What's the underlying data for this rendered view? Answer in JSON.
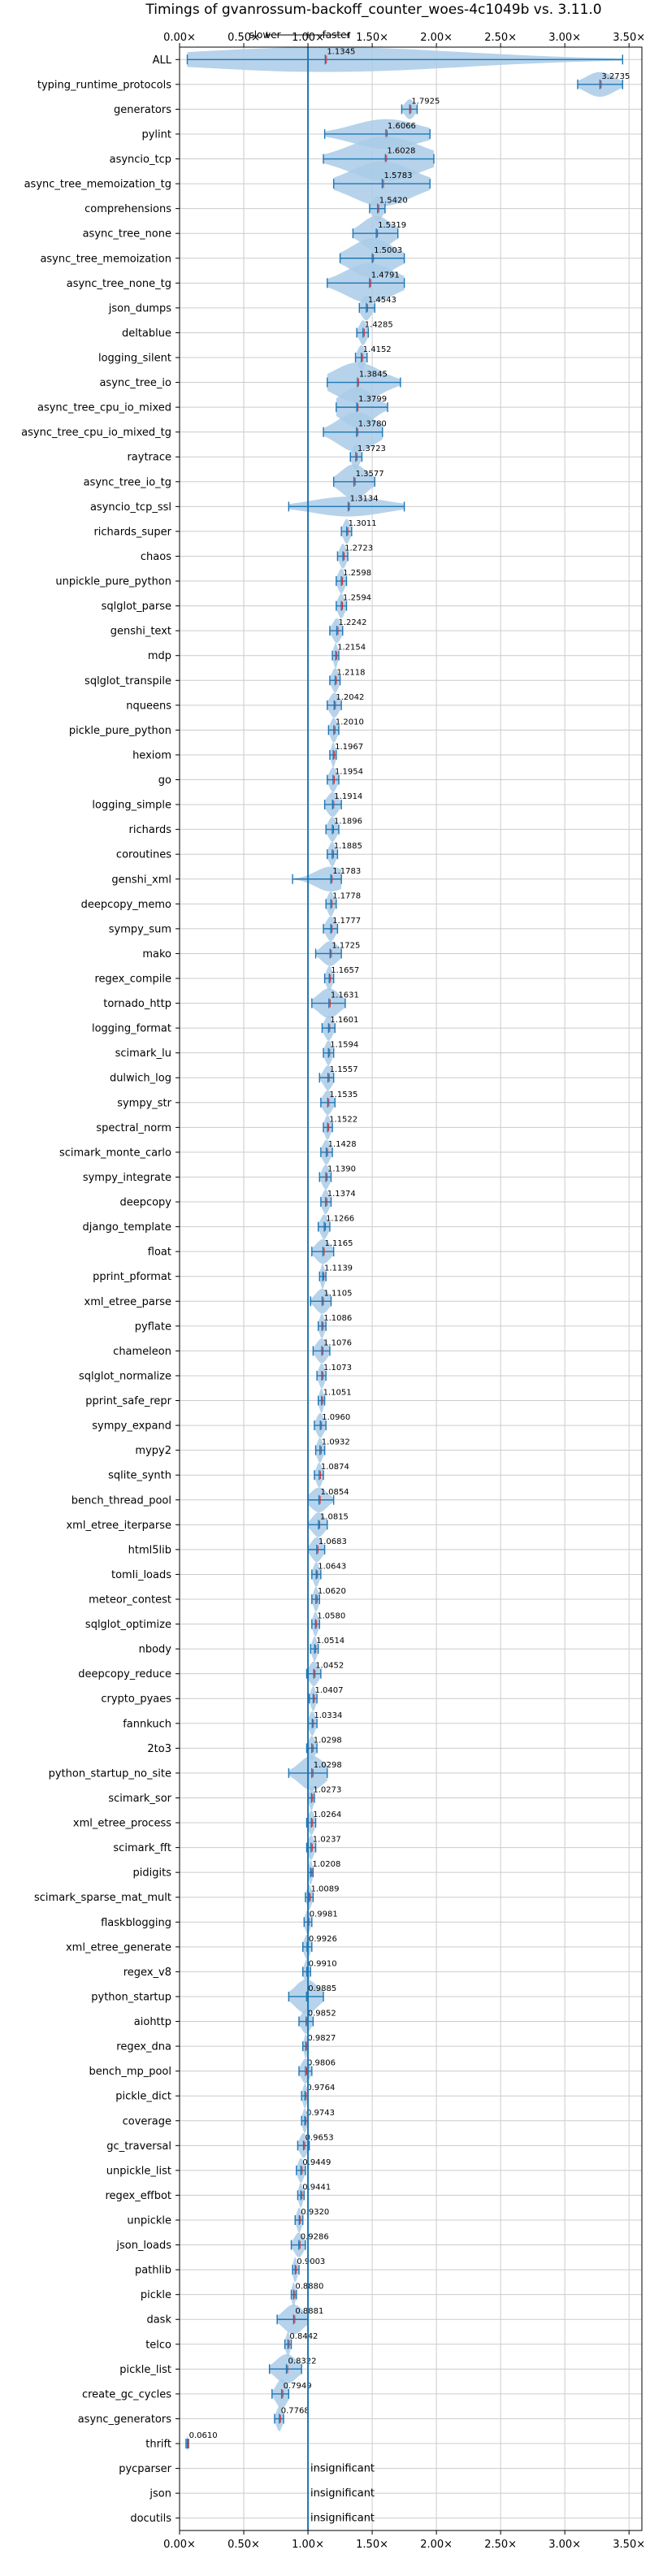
{
  "chart_data": {
    "type": "violin",
    "title": "Timings of gvanrossum-backoff_counter_woes-4c1049b vs. 3.11.0",
    "direction_labels": {
      "slower": "slower",
      "faster": "faster"
    },
    "xlim": [
      0,
      3.6
    ],
    "xticks": [
      0.0,
      0.5,
      1.0,
      1.5,
      2.0,
      2.5,
      3.0,
      3.5
    ],
    "xtick_labels": [
      "0.00×",
      "0.50×",
      "1.00×",
      "1.50×",
      "2.00×",
      "2.50×",
      "3.00×",
      "3.50×"
    ],
    "reference_line": 1.0,
    "grid": true,
    "colors": {
      "violin": "#a9cbe8",
      "line": "#1f77b4",
      "median": "#d62728",
      "grid": "#cccccc"
    },
    "insignificant_label": "insignificant",
    "benchmarks": [
      {
        "name": "ALL",
        "value": 1.1345,
        "label": "1.1345",
        "lo": 0.06,
        "hi": 3.45,
        "w": 0.5
      },
      {
        "name": "typing_runtime_protocols",
        "value": 3.2735,
        "label": "3.2735",
        "lo": 3.1,
        "hi": 3.45,
        "w": 0.5
      },
      {
        "name": "generators",
        "value": 1.7925,
        "label": "1.7925",
        "lo": 1.73,
        "hi": 1.85,
        "w": 0.4
      },
      {
        "name": "pylint",
        "value": 1.6066,
        "label": "1.6066",
        "lo": 1.13,
        "hi": 1.95,
        "w": 0.6
      },
      {
        "name": "asyncio_tcp",
        "value": 1.6028,
        "label": "1.6028",
        "lo": 1.12,
        "hi": 1.98,
        "w": 0.9
      },
      {
        "name": "async_tree_memoization_tg",
        "value": 1.5783,
        "label": "1.5783",
        "lo": 1.2,
        "hi": 1.95,
        "w": 0.9
      },
      {
        "name": "comprehensions",
        "value": 1.542,
        "label": "1.5420",
        "lo": 1.48,
        "hi": 1.6,
        "w": 0.5
      },
      {
        "name": "async_tree_none",
        "value": 1.5319,
        "label": "1.5319",
        "lo": 1.35,
        "hi": 1.7,
        "w": 0.7
      },
      {
        "name": "async_tree_memoization",
        "value": 1.5003,
        "label": "1.5003",
        "lo": 1.25,
        "hi": 1.75,
        "w": 0.8
      },
      {
        "name": "async_tree_none_tg",
        "value": 1.4791,
        "label": "1.4791",
        "lo": 1.15,
        "hi": 1.75,
        "w": 0.8
      },
      {
        "name": "json_dumps",
        "value": 1.4543,
        "label": "1.4543",
        "lo": 1.4,
        "hi": 1.52,
        "w": 0.5
      },
      {
        "name": "deltablue",
        "value": 1.4285,
        "label": "1.4285",
        "lo": 1.38,
        "hi": 1.47,
        "w": 0.5
      },
      {
        "name": "logging_silent",
        "value": 1.4152,
        "label": "1.4152",
        "lo": 1.37,
        "hi": 1.46,
        "w": 0.5
      },
      {
        "name": "async_tree_io",
        "value": 1.3845,
        "label": "1.3845",
        "lo": 1.15,
        "hi": 1.72,
        "w": 0.8
      },
      {
        "name": "async_tree_cpu_io_mixed",
        "value": 1.3799,
        "label": "1.3799",
        "lo": 1.22,
        "hi": 1.62,
        "w": 0.8
      },
      {
        "name": "async_tree_cpu_io_mixed_tg",
        "value": 1.378,
        "label": "1.3780",
        "lo": 1.12,
        "hi": 1.58,
        "w": 0.8
      },
      {
        "name": "raytrace",
        "value": 1.3723,
        "label": "1.3723",
        "lo": 1.33,
        "hi": 1.42,
        "w": 0.5
      },
      {
        "name": "async_tree_io_tg",
        "value": 1.3577,
        "label": "1.3577",
        "lo": 1.2,
        "hi": 1.52,
        "w": 0.7
      },
      {
        "name": "asyncio_tcp_ssl",
        "value": 1.3134,
        "label": "1.3134",
        "lo": 0.85,
        "hi": 1.75,
        "w": 0.4
      },
      {
        "name": "richards_super",
        "value": 1.3011,
        "label": "1.3011",
        "lo": 1.26,
        "hi": 1.34,
        "w": 0.5
      },
      {
        "name": "chaos",
        "value": 1.2723,
        "label": "1.2723",
        "lo": 1.23,
        "hi": 1.31,
        "w": 0.5
      },
      {
        "name": "unpickle_pure_python",
        "value": 1.2598,
        "label": "1.2598",
        "lo": 1.22,
        "hi": 1.3,
        "w": 0.5
      },
      {
        "name": "sqlglot_parse",
        "value": 1.2594,
        "label": "1.2594",
        "lo": 1.22,
        "hi": 1.3,
        "w": 0.5
      },
      {
        "name": "genshi_text",
        "value": 1.2242,
        "label": "1.2242",
        "lo": 1.17,
        "hi": 1.27,
        "w": 0.5
      },
      {
        "name": "mdp",
        "value": 1.2154,
        "label": "1.2154",
        "lo": 1.19,
        "hi": 1.24,
        "w": 0.5
      },
      {
        "name": "sqlglot_transpile",
        "value": 1.2118,
        "label": "1.2118",
        "lo": 1.17,
        "hi": 1.25,
        "w": 0.5
      },
      {
        "name": "nqueens",
        "value": 1.2042,
        "label": "1.2042",
        "lo": 1.15,
        "hi": 1.26,
        "w": 0.5
      },
      {
        "name": "pickle_pure_python",
        "value": 1.201,
        "label": "1.2010",
        "lo": 1.16,
        "hi": 1.24,
        "w": 0.5
      },
      {
        "name": "hexiom",
        "value": 1.1967,
        "label": "1.1967",
        "lo": 1.17,
        "hi": 1.22,
        "w": 0.5
      },
      {
        "name": "go",
        "value": 1.1954,
        "label": "1.1954",
        "lo": 1.15,
        "hi": 1.24,
        "w": 0.5
      },
      {
        "name": "logging_simple",
        "value": 1.1914,
        "label": "1.1914",
        "lo": 1.13,
        "hi": 1.26,
        "w": 0.5
      },
      {
        "name": "richards",
        "value": 1.1896,
        "label": "1.1896",
        "lo": 1.14,
        "hi": 1.24,
        "w": 0.5
      },
      {
        "name": "coroutines",
        "value": 1.1885,
        "label": "1.1885",
        "lo": 1.15,
        "hi": 1.23,
        "w": 0.5
      },
      {
        "name": "genshi_xml",
        "value": 1.1783,
        "label": "1.1783",
        "lo": 0.88,
        "hi": 1.26,
        "w": 0.5
      },
      {
        "name": "deepcopy_memo",
        "value": 1.1778,
        "label": "1.1778",
        "lo": 1.14,
        "hi": 1.22,
        "w": 0.5
      },
      {
        "name": "sympy_sum",
        "value": 1.1777,
        "label": "1.1777",
        "lo": 1.12,
        "hi": 1.23,
        "w": 0.5
      },
      {
        "name": "mako",
        "value": 1.1725,
        "label": "1.1725",
        "lo": 1.06,
        "hi": 1.26,
        "w": 0.5
      },
      {
        "name": "regex_compile",
        "value": 1.1657,
        "label": "1.1657",
        "lo": 1.13,
        "hi": 1.2,
        "w": 0.5
      },
      {
        "name": "tornado_http",
        "value": 1.1631,
        "label": "1.1631",
        "lo": 1.03,
        "hi": 1.29,
        "w": 0.6
      },
      {
        "name": "logging_format",
        "value": 1.1601,
        "label": "1.1601",
        "lo": 1.11,
        "hi": 1.21,
        "w": 0.5
      },
      {
        "name": "scimark_lu",
        "value": 1.1594,
        "label": "1.1594",
        "lo": 1.12,
        "hi": 1.2,
        "w": 0.5
      },
      {
        "name": "dulwich_log",
        "value": 1.1557,
        "label": "1.1557",
        "lo": 1.09,
        "hi": 1.2,
        "w": 0.5
      },
      {
        "name": "sympy_str",
        "value": 1.1535,
        "label": "1.1535",
        "lo": 1.1,
        "hi": 1.21,
        "w": 0.5
      },
      {
        "name": "spectral_norm",
        "value": 1.1522,
        "label": "1.1522",
        "lo": 1.12,
        "hi": 1.19,
        "w": 0.5
      },
      {
        "name": "scimark_monte_carlo",
        "value": 1.1428,
        "label": "1.1428",
        "lo": 1.1,
        "hi": 1.19,
        "w": 0.5
      },
      {
        "name": "sympy_integrate",
        "value": 1.139,
        "label": "1.1390",
        "lo": 1.09,
        "hi": 1.18,
        "w": 0.5
      },
      {
        "name": "deepcopy",
        "value": 1.1374,
        "label": "1.1374",
        "lo": 1.1,
        "hi": 1.18,
        "w": 0.5
      },
      {
        "name": "django_template",
        "value": 1.1266,
        "label": "1.1266",
        "lo": 1.08,
        "hi": 1.17,
        "w": 0.5
      },
      {
        "name": "float",
        "value": 1.1165,
        "label": "1.1165",
        "lo": 1.03,
        "hi": 1.2,
        "w": 0.5
      },
      {
        "name": "pprint_pformat",
        "value": 1.1139,
        "label": "1.1139",
        "lo": 1.09,
        "hi": 1.14,
        "w": 0.5
      },
      {
        "name": "xml_etree_parse",
        "value": 1.1105,
        "label": "1.1105",
        "lo": 1.02,
        "hi": 1.18,
        "w": 0.5
      },
      {
        "name": "pyflate",
        "value": 1.1086,
        "label": "1.1086",
        "lo": 1.08,
        "hi": 1.14,
        "w": 0.5
      },
      {
        "name": "chameleon",
        "value": 1.1076,
        "label": "1.1076",
        "lo": 1.04,
        "hi": 1.17,
        "w": 0.5
      },
      {
        "name": "sqlglot_normalize",
        "value": 1.1073,
        "label": "1.1073",
        "lo": 1.07,
        "hi": 1.14,
        "w": 0.5
      },
      {
        "name": "pprint_safe_repr",
        "value": 1.1051,
        "label": "1.1051",
        "lo": 1.08,
        "hi": 1.13,
        "w": 0.5
      },
      {
        "name": "sympy_expand",
        "value": 1.096,
        "label": "1.0960",
        "lo": 1.05,
        "hi": 1.14,
        "w": 0.5
      },
      {
        "name": "mypy2",
        "value": 1.0932,
        "label": "1.0932",
        "lo": 1.06,
        "hi": 1.13,
        "w": 0.5
      },
      {
        "name": "sqlite_synth",
        "value": 1.0874,
        "label": "1.0874",
        "lo": 1.05,
        "hi": 1.12,
        "w": 0.5
      },
      {
        "name": "bench_thread_pool",
        "value": 1.0854,
        "label": "1.0854",
        "lo": 1.0,
        "hi": 1.2,
        "w": 0.5
      },
      {
        "name": "xml_etree_iterparse",
        "value": 1.0815,
        "label": "1.0815",
        "lo": 1.0,
        "hi": 1.15,
        "w": 0.5
      },
      {
        "name": "html5lib",
        "value": 1.0683,
        "label": "1.0683",
        "lo": 1.0,
        "hi": 1.13,
        "w": 0.5
      },
      {
        "name": "tomli_loads",
        "value": 1.0643,
        "label": "1.0643",
        "lo": 1.03,
        "hi": 1.1,
        "w": 0.5
      },
      {
        "name": "meteor_contest",
        "value": 1.062,
        "label": "1.0620",
        "lo": 1.03,
        "hi": 1.09,
        "w": 0.5
      },
      {
        "name": "sqlglot_optimize",
        "value": 1.058,
        "label": "1.0580",
        "lo": 1.03,
        "hi": 1.09,
        "w": 0.5
      },
      {
        "name": "nbody",
        "value": 1.0514,
        "label": "1.0514",
        "lo": 1.02,
        "hi": 1.08,
        "w": 0.5
      },
      {
        "name": "deepcopy_reduce",
        "value": 1.0452,
        "label": "1.0452",
        "lo": 0.99,
        "hi": 1.1,
        "w": 0.5
      },
      {
        "name": "crypto_pyaes",
        "value": 1.0407,
        "label": "1.0407",
        "lo": 1.01,
        "hi": 1.07,
        "w": 0.5
      },
      {
        "name": "fannkuch",
        "value": 1.0334,
        "label": "1.0334",
        "lo": 1.0,
        "hi": 1.07,
        "w": 0.5
      },
      {
        "name": "2to3",
        "value": 1.0298,
        "label": "1.0298",
        "lo": 0.99,
        "hi": 1.07,
        "w": 0.5
      },
      {
        "name": "python_startup_no_site",
        "value": 1.0298,
        "label": "1.0298",
        "lo": 0.85,
        "hi": 1.15,
        "w": 0.7
      },
      {
        "name": "scimark_sor",
        "value": 1.0273,
        "label": "1.0273",
        "lo": 1.0,
        "hi": 1.05,
        "w": 0.5
      },
      {
        "name": "xml_etree_process",
        "value": 1.0264,
        "label": "1.0264",
        "lo": 0.99,
        "hi": 1.06,
        "w": 0.5
      },
      {
        "name": "scimark_fft",
        "value": 1.0237,
        "label": "1.0237",
        "lo": 0.99,
        "hi": 1.06,
        "w": 0.5
      },
      {
        "name": "pidigits",
        "value": 1.0208,
        "label": "1.0208",
        "lo": 1.0,
        "hi": 1.04,
        "w": 0.5
      },
      {
        "name": "scimark_sparse_mat_mult",
        "value": 1.0089,
        "label": "1.0089",
        "lo": 0.98,
        "hi": 1.04,
        "w": 0.5
      },
      {
        "name": "flaskblogging",
        "value": 0.9981,
        "label": "0.9981",
        "lo": 0.97,
        "hi": 1.03,
        "w": 0.5
      },
      {
        "name": "xml_etree_generate",
        "value": 0.9926,
        "label": "0.9926",
        "lo": 0.96,
        "hi": 1.03,
        "w": 0.5
      },
      {
        "name": "regex_v8",
        "value": 0.991,
        "label": "0.9910",
        "lo": 0.96,
        "hi": 1.02,
        "w": 0.5
      },
      {
        "name": "python_startup",
        "value": 0.9885,
        "label": "0.9885",
        "lo": 0.85,
        "hi": 1.12,
        "w": 0.7
      },
      {
        "name": "aiohttp",
        "value": 0.9852,
        "label": "0.9852",
        "lo": 0.93,
        "hi": 1.04,
        "w": 0.5
      },
      {
        "name": "regex_dna",
        "value": 0.9827,
        "label": "0.9827",
        "lo": 0.96,
        "hi": 1.0,
        "w": 0.5
      },
      {
        "name": "bench_mp_pool",
        "value": 0.9806,
        "label": "0.9806",
        "lo": 0.93,
        "hi": 1.03,
        "w": 0.5
      },
      {
        "name": "pickle_dict",
        "value": 0.9764,
        "label": "0.9764",
        "lo": 0.95,
        "hi": 1.0,
        "w": 0.5
      },
      {
        "name": "coverage",
        "value": 0.9743,
        "label": "0.9743",
        "lo": 0.95,
        "hi": 1.0,
        "w": 0.5
      },
      {
        "name": "gc_traversal",
        "value": 0.9653,
        "label": "0.9653",
        "lo": 0.92,
        "hi": 1.01,
        "w": 0.5
      },
      {
        "name": "unpickle_list",
        "value": 0.9449,
        "label": "0.9449",
        "lo": 0.91,
        "hi": 0.98,
        "w": 0.5
      },
      {
        "name": "regex_effbot",
        "value": 0.9441,
        "label": "0.9441",
        "lo": 0.92,
        "hi": 0.97,
        "w": 0.5
      },
      {
        "name": "unpickle",
        "value": 0.932,
        "label": "0.9320",
        "lo": 0.9,
        "hi": 0.96,
        "w": 0.5
      },
      {
        "name": "json_loads",
        "value": 0.9286,
        "label": "0.9286",
        "lo": 0.87,
        "hi": 0.98,
        "w": 0.5
      },
      {
        "name": "pathlib",
        "value": 0.9003,
        "label": "0.9003",
        "lo": 0.88,
        "hi": 0.93,
        "w": 0.5
      },
      {
        "name": "pickle",
        "value": 0.888,
        "label": "0.8880",
        "lo": 0.87,
        "hi": 0.91,
        "w": 0.5
      },
      {
        "name": "dask",
        "value": 0.8881,
        "label": "0.8881",
        "lo": 0.76,
        "hi": 1.0,
        "w": 0.6
      },
      {
        "name": "telco",
        "value": 0.8442,
        "label": "0.8442",
        "lo": 0.82,
        "hi": 0.87,
        "w": 0.5
      },
      {
        "name": "pickle_list",
        "value": 0.8322,
        "label": "0.8322",
        "lo": 0.7,
        "hi": 0.95,
        "w": 0.6
      },
      {
        "name": "create_gc_cycles",
        "value": 0.7949,
        "label": "0.7949",
        "lo": 0.72,
        "hi": 0.85,
        "w": 0.6
      },
      {
        "name": "async_generators",
        "value": 0.7768,
        "label": "0.7768",
        "lo": 0.74,
        "hi": 0.81,
        "w": 0.5
      },
      {
        "name": "thrift",
        "value": 0.061,
        "label": "0.0610",
        "lo": 0.05,
        "hi": 0.07,
        "w": 0.3
      },
      {
        "name": "pycparser",
        "value": null,
        "label": "",
        "insignificant": true
      },
      {
        "name": "json",
        "value": null,
        "label": "",
        "insignificant": true
      },
      {
        "name": "docutils",
        "value": null,
        "label": "",
        "insignificant": true
      }
    ]
  }
}
